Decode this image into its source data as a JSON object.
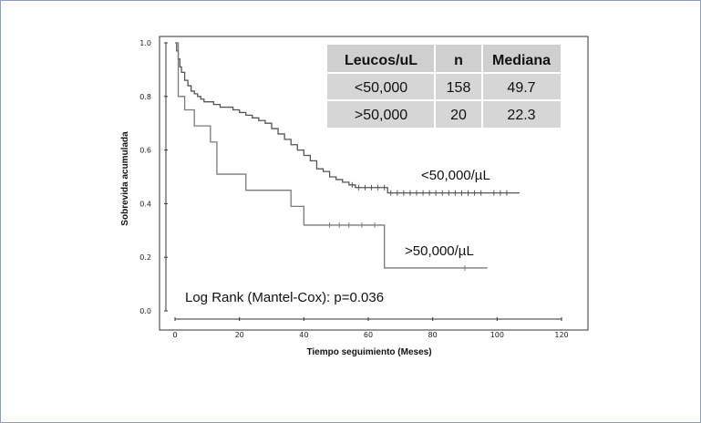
{
  "chart_data": {
    "type": "line",
    "title": "",
    "xlabel": "Tiempo seguimiento (Meses)",
    "ylabel": "Sobrevida acumulada",
    "xlim": [
      0,
      120
    ],
    "ylim": [
      0,
      1
    ],
    "xticks": [
      "0",
      "20",
      "40",
      "60",
      "80",
      "100",
      "120"
    ],
    "xtick_values": [
      0,
      20,
      40,
      60,
      80,
      100,
      120
    ],
    "yticks": [
      "0.0",
      "0.2",
      "0.4",
      "0.6",
      "0.8",
      "1.0"
    ],
    "ytick_values": [
      0,
      0.2,
      0.4,
      0.6,
      0.8,
      1.0
    ],
    "series": [
      {
        "name": "<50,000/µL",
        "color": "#555555",
        "x": [
          0,
          0.5,
          1,
          1.5,
          2,
          3,
          4,
          5,
          6,
          7,
          8,
          9,
          10,
          12,
          14,
          16,
          18,
          20,
          22,
          24,
          26,
          28,
          30,
          32,
          34,
          36,
          38,
          40,
          42,
          44,
          46,
          48,
          50,
          52,
          54,
          56,
          58,
          60,
          62,
          64,
          66,
          68,
          70,
          75,
          80,
          85,
          90,
          95,
          100,
          105,
          107
        ],
        "values": [
          1.0,
          0.97,
          0.94,
          0.91,
          0.89,
          0.86,
          0.84,
          0.82,
          0.81,
          0.8,
          0.79,
          0.78,
          0.78,
          0.77,
          0.76,
          0.76,
          0.75,
          0.74,
          0.73,
          0.72,
          0.71,
          0.7,
          0.68,
          0.66,
          0.64,
          0.62,
          0.6,
          0.58,
          0.56,
          0.53,
          0.52,
          0.5,
          0.49,
          0.48,
          0.47,
          0.46,
          0.46,
          0.46,
          0.46,
          0.46,
          0.44,
          0.44,
          0.44,
          0.44,
          0.44,
          0.44,
          0.44,
          0.44,
          0.44,
          0.44,
          0.44
        ],
        "censor_x": [
          55,
          57,
          59,
          61,
          63,
          65,
          67,
          69,
          71,
          73,
          75,
          77,
          79,
          81,
          83,
          85,
          87,
          89,
          91,
          93,
          95,
          99,
          101,
          103
        ]
      },
      {
        "name": ">50,000/µL",
        "color": "#7a7a7a",
        "x": [
          0,
          1,
          3,
          6,
          11,
          13,
          22,
          36,
          40,
          65,
          97
        ],
        "values": [
          1.0,
          0.8,
          0.75,
          0.69,
          0.63,
          0.51,
          0.45,
          0.39,
          0.32,
          0.16,
          0.16
        ],
        "censor_x": [
          48,
          51,
          54,
          58,
          62,
          90
        ]
      }
    ],
    "table": {
      "headers": [
        "Leucos/uL",
        "n",
        "Mediana"
      ],
      "rows": [
        [
          "<50,000",
          "158",
          "49.7"
        ],
        [
          ">50,000",
          "20",
          "22.3"
        ]
      ],
      "fill_color": "#d6d6d6",
      "header_fill_color": "#cfcfcf"
    },
    "annotation": "Log Rank (Mantel-Cox): p=0.036",
    "series_labels": [
      "<50,000/µL",
      ">50,000/µL"
    ]
  }
}
